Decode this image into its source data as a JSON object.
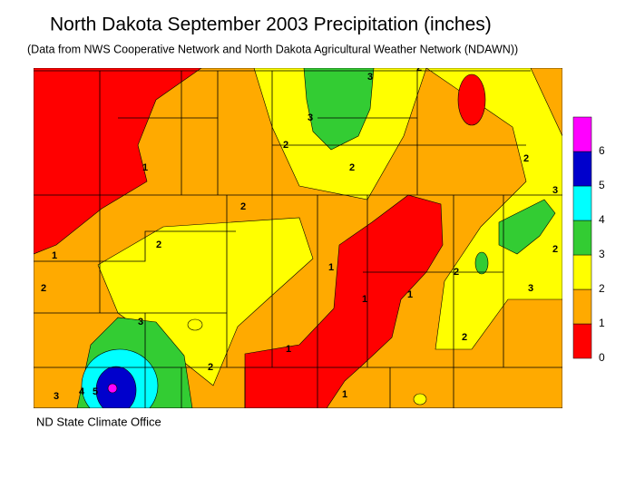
{
  "title": "North Dakota September 2003 Precipitation (inches)",
  "subtitle": "(Data from NWS Cooperative Network and North Dakota Agricultural Weather Network (NDAWN))",
  "credit": "ND State Climate Office",
  "legend": {
    "colors": [
      "#ff0000",
      "#ffaa00",
      "#ffff00",
      "#33cc33",
      "#00ffff",
      "#0000cc",
      "#ff00ff"
    ],
    "ticks": [
      0,
      1,
      2,
      3,
      4,
      5,
      6
    ]
  },
  "map": {
    "contour_labels": [
      "1",
      "1",
      "2",
      "2",
      "2",
      "3",
      "3",
      "2",
      "2",
      "2",
      "1",
      "1",
      "1",
      "1",
      "2",
      "3",
      "3",
      "2",
      "2",
      "3",
      "3",
      "4",
      "5",
      "2",
      "1",
      "2"
    ]
  }
}
